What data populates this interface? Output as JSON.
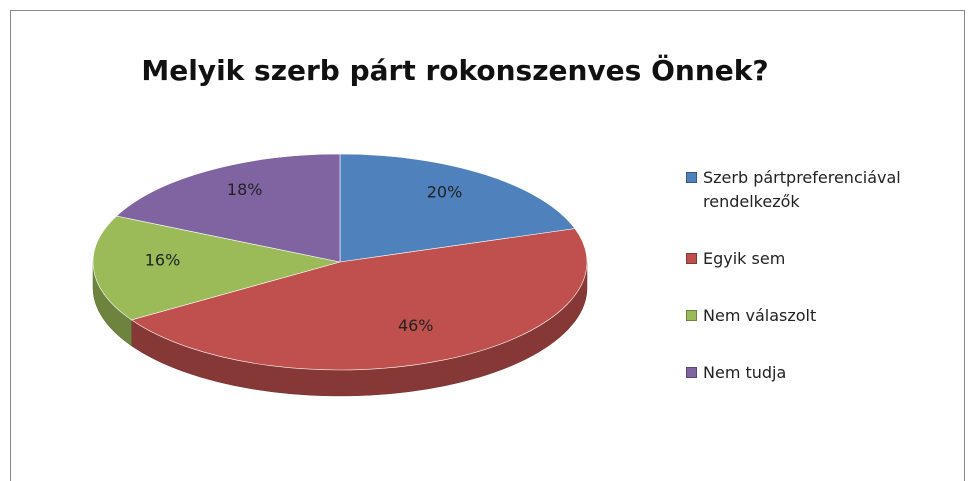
{
  "chart_data": {
    "type": "pie",
    "title": "Melyik szerb párt rokonszenves Önnek?",
    "categories": [
      "Szerb pártpreferenciával rendelkezők",
      "Egyik sem",
      "Nem válaszolt",
      "Nem tudja"
    ],
    "values": [
      20,
      46,
      16,
      18
    ],
    "value_labels": [
      "20%",
      "46%",
      "16%",
      "18%"
    ],
    "colors": [
      "#4f81bd",
      "#c0504d",
      "#9bbb59",
      "#8064a2"
    ],
    "legend": "right"
  }
}
